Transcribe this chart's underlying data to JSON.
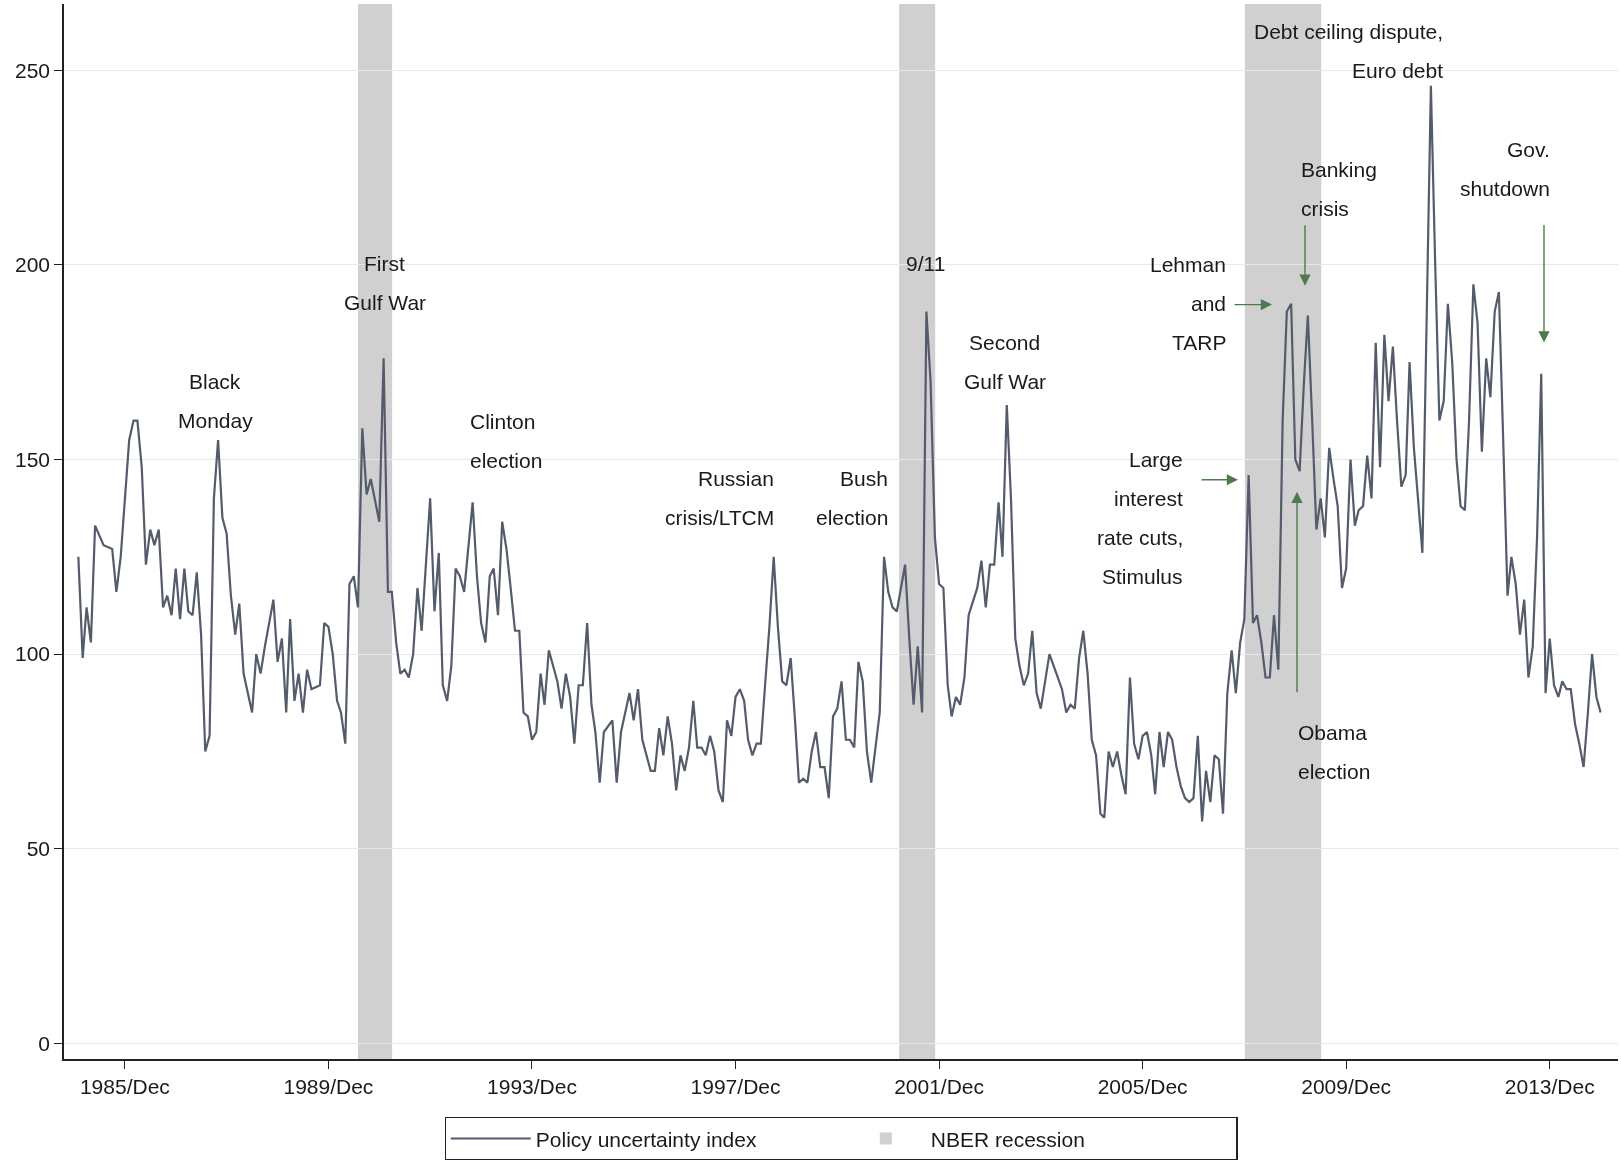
{
  "chart_data": {
    "type": "line",
    "xlim": [
      "1984-09-20",
      "2015-04-05"
    ],
    "xticks": [
      {
        "value": "1985-12",
        "label": "1985/Dec"
      },
      {
        "value": "1989-12",
        "label": "1989/Dec"
      },
      {
        "value": "1993-12",
        "label": "1993/Dec"
      },
      {
        "value": "1997-12",
        "label": "1997/Dec"
      },
      {
        "value": "2001-12",
        "label": "2001/Dec"
      },
      {
        "value": "2005-12",
        "label": "2005/Dec"
      },
      {
        "value": "2009-12",
        "label": "2009/Dec"
      },
      {
        "value": "2013-12",
        "label": "2013/Dec"
      }
    ],
    "ylim": [
      -4,
      267
    ],
    "yticks": [
      0,
      50,
      100,
      150,
      200,
      250
    ],
    "grid": "y",
    "legend": "bottom",
    "x": [
      "1985-01",
      "1985-02",
      "1985-03",
      "1985-04",
      "1985-05",
      "1985-07",
      "1985-09",
      "1985-10",
      "1985-11",
      "1986-01",
      "1986-02",
      "1986-03",
      "1986-04",
      "1986-05",
      "1986-06",
      "1986-07",
      "1986-08",
      "1986-09",
      "1986-10",
      "1986-11",
      "1986-12",
      "1987-01",
      "1987-02",
      "1987-03",
      "1987-04",
      "1987-05",
      "1987-06",
      "1987-07",
      "1987-08",
      "1987-09",
      "1987-10",
      "1987-11",
      "1987-12",
      "1988-01",
      "1988-02",
      "1988-03",
      "1988-04",
      "1988-06",
      "1988-07",
      "1988-08",
      "1988-09",
      "1988-11",
      "1988-12",
      "1989-01",
      "1989-02",
      "1989-03",
      "1989-04",
      "1989-05",
      "1989-06",
      "1989-07",
      "1989-08",
      "1989-10",
      "1989-11",
      "1989-12",
      "1990-01",
      "1990-02",
      "1990-03",
      "1990-04",
      "1990-05",
      "1990-06",
      "1990-07",
      "1990-08",
      "1990-09",
      "1990-10",
      "1990-12",
      "1991-01",
      "1991-02",
      "1991-03",
      "1991-04",
      "1991-05",
      "1991-06",
      "1991-07",
      "1991-08",
      "1991-09",
      "1991-10",
      "1991-12",
      "1992-01",
      "1992-02",
      "1992-03",
      "1992-04",
      "1992-05",
      "1992-06",
      "1992-07",
      "1992-08",
      "1992-10",
      "1992-11",
      "1992-12",
      "1993-01",
      "1993-02",
      "1993-03",
      "1993-04",
      "1993-05",
      "1993-06",
      "1993-07",
      "1993-08",
      "1993-09",
      "1993-10",
      "1993-11",
      "1993-12",
      "1994-01",
      "1994-02",
      "1994-03",
      "1994-04",
      "1994-06",
      "1994-07",
      "1994-08",
      "1994-09",
      "1994-10",
      "1994-11",
      "1994-12",
      "1995-01",
      "1995-02",
      "1995-03",
      "1995-04",
      "1995-05",
      "1995-07",
      "1995-08",
      "1995-09",
      "1995-11",
      "1995-12",
      "1996-01",
      "1996-02",
      "1996-04",
      "1996-05",
      "1996-06",
      "1996-07",
      "1996-08",
      "1996-09",
      "1996-10",
      "1996-11",
      "1996-12",
      "1997-01",
      "1997-02",
      "1997-03",
      "1997-04",
      "1997-05",
      "1997-06",
      "1997-07",
      "1997-08",
      "1997-09",
      "1997-10",
      "1997-11",
      "1997-12",
      "1998-01",
      "1998-02",
      "1998-03",
      "1998-04",
      "1998-05",
      "1998-06",
      "1998-07",
      "1998-08",
      "1998-09",
      "1998-10",
      "1998-11",
      "1998-12",
      "1999-01",
      "1999-02",
      "1999-03",
      "1999-04",
      "1999-05",
      "1999-06",
      "1999-07",
      "1999-08",
      "1999-09",
      "1999-10",
      "1999-11",
      "1999-12",
      "2000-01",
      "2000-02",
      "2000-03",
      "2000-04",
      "2000-05",
      "2000-06",
      "2000-07",
      "2000-08",
      "2000-10",
      "2000-11",
      "2000-12",
      "2001-01",
      "2001-02",
      "2001-04",
      "2001-05",
      "2001-06",
      "2001-07",
      "2001-08",
      "2001-09",
      "2001-10",
      "2001-11",
      "2001-12",
      "2002-01",
      "2002-02",
      "2002-03",
      "2002-04",
      "2002-05",
      "2002-06",
      "2002-07",
      "2002-09",
      "2002-10",
      "2002-11",
      "2002-12",
      "2003-01",
      "2003-02",
      "2003-03",
      "2003-04",
      "2003-05",
      "2003-06",
      "2003-07",
      "2003-08",
      "2003-09",
      "2003-10",
      "2003-11",
      "2003-12",
      "2004-01",
      "2004-02",
      "2004-04",
      "2004-05",
      "2004-06",
      "2004-07",
      "2004-08",
      "2004-09",
      "2004-10",
      "2004-11",
      "2004-12",
      "2005-01",
      "2005-02",
      "2005-03",
      "2005-04",
      "2005-05",
      "2005-06",
      "2005-07",
      "2005-08",
      "2005-09",
      "2005-10",
      "2005-11",
      "2005-12",
      "2006-01",
      "2006-02",
      "2006-03",
      "2006-04",
      "2006-05",
      "2006-06",
      "2006-07",
      "2006-08",
      "2006-09",
      "2006-10",
      "2006-11",
      "2006-12",
      "2007-01",
      "2007-02",
      "2007-03",
      "2007-04",
      "2007-05",
      "2007-06",
      "2007-07",
      "2007-08",
      "2007-09",
      "2007-10",
      "2007-11",
      "2007-12",
      "2008-01",
      "2008-02",
      "2008-03",
      "2008-04",
      "2008-05",
      "2008-06",
      "2008-07",
      "2008-08",
      "2008-09",
      "2008-10",
      "2008-11",
      "2008-12",
      "2009-01",
      "2009-02",
      "2009-03",
      "2009-04",
      "2009-05",
      "2009-06",
      "2009-07",
      "2009-08",
      "2009-09",
      "2009-10",
      "2009-11",
      "2009-12",
      "2010-01",
      "2010-02",
      "2010-03",
      "2010-04",
      "2010-05",
      "2010-06",
      "2010-07",
      "2010-08",
      "2010-09",
      "2010-10",
      "2010-11",
      "2010-12",
      "2011-01",
      "2011-02",
      "2011-03",
      "2011-04",
      "2011-06",
      "2011-07",
      "2011-08",
      "2011-09",
      "2011-10",
      "2011-11",
      "2011-12",
      "2012-01",
      "2012-02",
      "2012-03",
      "2012-04",
      "2012-05",
      "2012-06",
      "2012-07",
      "2012-08",
      "2012-09",
      "2012-10",
      "2012-11",
      "2012-12",
      "2013-01",
      "2013-02",
      "2013-03",
      "2013-04",
      "2013-05",
      "2013-06",
      "2013-07",
      "2013-08",
      "2013-09",
      "2013-10",
      "2013-11",
      "2013-12",
      "2014-01",
      "2014-02",
      "2014-03",
      "2014-04",
      "2014-05",
      "2014-06",
      "2014-07",
      "2014-08",
      "2014-09",
      "2014-10",
      "2014-11",
      "2014-12"
    ],
    "series": [
      {
        "name": "Policy uncertainty index",
        "color": "#545b6b",
        "values": [
          125,
          99,
          112,
          103,
          133,
          128,
          127,
          116,
          125,
          155,
          160,
          160,
          148,
          123,
          132,
          128,
          132,
          112,
          115,
          110,
          122,
          109,
          122,
          111,
          110,
          121,
          105,
          75,
          79,
          140,
          155,
          135,
          131,
          115,
          105,
          113,
          95,
          85,
          100,
          95,
          102,
          114,
          98,
          104,
          85,
          109,
          88,
          95,
          85,
          96,
          91,
          92,
          108,
          107,
          100,
          88,
          85,
          77,
          118,
          120,
          112,
          158,
          141,
          145,
          134,
          176,
          116,
          116,
          103,
          95,
          96,
          94,
          100,
          117,
          106,
          140,
          111,
          126,
          92,
          88,
          97,
          122,
          120,
          116,
          139,
          120,
          108,
          103,
          120,
          122,
          110,
          134,
          127,
          117,
          106,
          106,
          85,
          84,
          78,
          80,
          95,
          87,
          101,
          93,
          86,
          95,
          89,
          77,
          92,
          92,
          108,
          87,
          80,
          67,
          80,
          83,
          67,
          80,
          90,
          83,
          91,
          78,
          70,
          70,
          81,
          74,
          84,
          77,
          65,
          74,
          70,
          76,
          88,
          76,
          76,
          74,
          79,
          75,
          65,
          62,
          83,
          79,
          89,
          91,
          88,
          78,
          74,
          77,
          77,
          92,
          107,
          125,
          107,
          93,
          92,
          99,
          83,
          67,
          68,
          67,
          75,
          80,
          71,
          71,
          63,
          84,
          86,
          93,
          78,
          78,
          76,
          98,
          93,
          75,
          67,
          85,
          125,
          116,
          112,
          111,
          123,
          104,
          87,
          102,
          85,
          188,
          170,
          130,
          118,
          117,
          92,
          84,
          89,
          87,
          94,
          110,
          117,
          124,
          112,
          123,
          123,
          139,
          125,
          164,
          140,
          104,
          97,
          92,
          95,
          106,
          90,
          86,
          93,
          100,
          94,
          91,
          85,
          87,
          86,
          99,
          106,
          95,
          78,
          74,
          59,
          58,
          75,
          71,
          75,
          69,
          64,
          94,
          77,
          73,
          79,
          80,
          74,
          64,
          80,
          71,
          80,
          78,
          71,
          66,
          63,
          62,
          63,
          79,
          57,
          70,
          62,
          74,
          73,
          59,
          90,
          101,
          90,
          103,
          109,
          146,
          108,
          110,
          103,
          94,
          94,
          110,
          96,
          160,
          188,
          190,
          150,
          147,
          170,
          187,
          160,
          132,
          140,
          130,
          153,
          145,
          138,
          117,
          122,
          150,
          133,
          137,
          138,
          151,
          140,
          180,
          148,
          182,
          165,
          179,
          160,
          143,
          146,
          175,
          153,
          126,
          185,
          246,
          200,
          160,
          165,
          190,
          175,
          150,
          138,
          137,
          160,
          195,
          185,
          152,
          176,
          166,
          188,
          193,
          155,
          115,
          125,
          118,
          105,
          114,
          94,
          102,
          130,
          172,
          90,
          104,
          92,
          89,
          93,
          91,
          91,
          82,
          77,
          71,
          85,
          100,
          89,
          85
        ]
      }
    ],
    "bands": [
      {
        "axis": "x",
        "from": "1990-07-01",
        "to": "1991-03-03",
        "label": "NBER recession",
        "color": "#d0d0d0"
      },
      {
        "axis": "x",
        "from": "2001-02-17",
        "to": "2001-11-03",
        "color": "#d0d0d0"
      },
      {
        "axis": "x",
        "from": "2007-12-05",
        "to": "2009-06-05",
        "color": "#d0d0d0"
      }
    ],
    "annotations": [
      {
        "text": "Black\nMonday",
        "x": "1987-10",
        "y": 155
      },
      {
        "text": "First\nGulf War",
        "x": "1991-01",
        "y": 176
      },
      {
        "text": "Clinton\nelection",
        "x": "1992-10",
        "y": 139
      },
      {
        "text": "Russian\ncrisis/LTCM",
        "x": "1998-09",
        "y": 125
      },
      {
        "text": "Bush\nelection",
        "x": "2000-11",
        "y": 125
      },
      {
        "text": "9/11",
        "x": "2001-09",
        "y": 188
      },
      {
        "text": "Second\nGulf War",
        "x": "2003-04",
        "y": 164
      },
      "Lehman\nand\nTARP",
      "Banking\ncrisis",
      "Large\ninterest\nrate cuts,\nStimulus",
      "Obama\nelection",
      {
        "text": "Debt ceiling dispute,\nEuro debt",
        "x": "2011-08",
        "y": 246
      },
      "Gov.\nshutdown"
    ]
  }
}
